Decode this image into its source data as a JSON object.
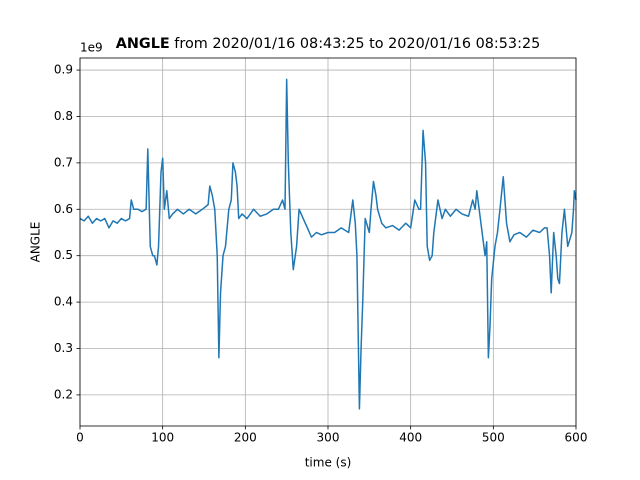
{
  "chart_data": {
    "type": "line",
    "title_bold": "ANGLE",
    "title": "from 2020/01/16 08:43:25 to 2020/01/16 08:53:25",
    "y_offset_label": "1e9",
    "xlabel": "time (s)",
    "ylabel": "ANGLE",
    "color": "#1f77b4",
    "grid": true,
    "xlim": [
      0,
      600
    ],
    "ylim": [
      0.133,
      0.926
    ],
    "xticks": [
      0,
      100,
      200,
      300,
      400,
      500,
      600
    ],
    "yticks": [
      0.2,
      0.3,
      0.4,
      0.5,
      0.6,
      0.7,
      0.8,
      0.9
    ],
    "x": [
      0,
      5,
      10,
      15,
      20,
      25,
      30,
      35,
      40,
      45,
      50,
      55,
      60,
      62,
      65,
      70,
      75,
      80,
      82,
      85,
      88,
      90,
      93,
      95,
      98,
      100,
      102,
      105,
      108,
      112,
      118,
      125,
      132,
      140,
      148,
      155,
      157,
      160,
      163,
      166,
      168,
      170,
      173,
      176,
      180,
      183,
      185,
      188,
      190,
      192,
      196,
      202,
      210,
      218,
      226,
      234,
      240,
      245,
      248,
      250,
      252,
      255,
      258,
      262,
      265,
      270,
      275,
      280,
      286,
      292,
      300,
      308,
      316,
      325,
      330,
      333,
      335,
      338,
      340,
      342,
      345,
      350,
      352,
      355,
      358,
      360,
      365,
      370,
      378,
      386,
      394,
      400,
      405,
      410,
      412,
      415,
      418,
      420,
      423,
      426,
      428,
      433,
      438,
      442,
      448,
      455,
      462,
      470,
      475,
      478,
      480,
      485,
      490,
      492,
      494,
      496,
      498,
      502,
      505,
      508,
      512,
      516,
      520,
      525,
      532,
      540,
      548,
      556,
      562,
      565,
      567,
      568,
      570,
      573,
      576,
      578,
      580,
      583,
      586,
      590,
      595,
      597,
      598,
      600
    ],
    "values": [
      0.58,
      0.575,
      0.585,
      0.57,
      0.58,
      0.575,
      0.58,
      0.56,
      0.575,
      0.57,
      0.58,
      0.575,
      0.58,
      0.62,
      0.6,
      0.6,
      0.595,
      0.6,
      0.73,
      0.52,
      0.5,
      0.5,
      0.48,
      0.52,
      0.68,
      0.71,
      0.6,
      0.64,
      0.58,
      0.59,
      0.6,
      0.59,
      0.6,
      0.59,
      0.6,
      0.61,
      0.65,
      0.63,
      0.6,
      0.5,
      0.28,
      0.42,
      0.5,
      0.52,
      0.6,
      0.62,
      0.7,
      0.68,
      0.65,
      0.58,
      0.59,
      0.58,
      0.6,
      0.585,
      0.59,
      0.6,
      0.6,
      0.62,
      0.6,
      0.88,
      0.7,
      0.55,
      0.47,
      0.52,
      0.6,
      0.58,
      0.56,
      0.54,
      0.55,
      0.545,
      0.55,
      0.55,
      0.56,
      0.55,
      0.62,
      0.57,
      0.5,
      0.17,
      0.3,
      0.4,
      0.58,
      0.55,
      0.6,
      0.66,
      0.63,
      0.6,
      0.57,
      0.56,
      0.565,
      0.555,
      0.57,
      0.56,
      0.62,
      0.6,
      0.6,
      0.77,
      0.7,
      0.52,
      0.49,
      0.5,
      0.55,
      0.62,
      0.58,
      0.6,
      0.585,
      0.6,
      0.59,
      0.585,
      0.62,
      0.6,
      0.64,
      0.57,
      0.5,
      0.53,
      0.28,
      0.35,
      0.45,
      0.52,
      0.55,
      0.6,
      0.67,
      0.57,
      0.53,
      0.545,
      0.55,
      0.54,
      0.555,
      0.55,
      0.56,
      0.56,
      0.52,
      0.5,
      0.42,
      0.55,
      0.5,
      0.45,
      0.44,
      0.55,
      0.6,
      0.52,
      0.55,
      0.6,
      0.64,
      0.62
    ]
  }
}
